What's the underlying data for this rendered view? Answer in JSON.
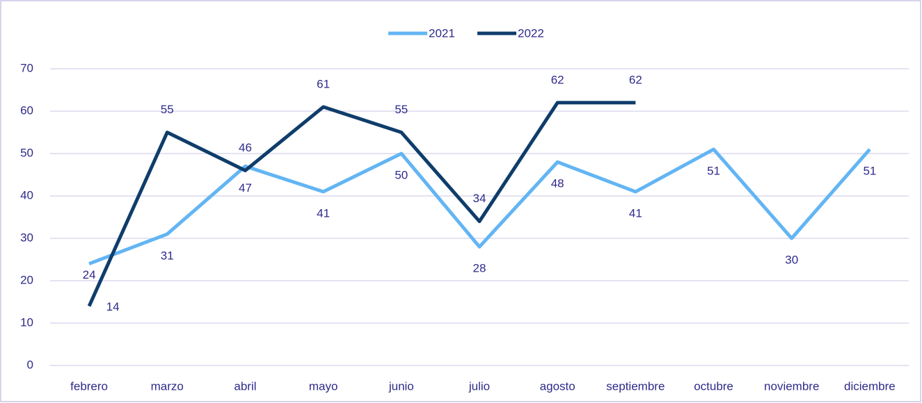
{
  "chart_data": {
    "type": "line",
    "categories": [
      "febrero",
      "marzo",
      "abril",
      "mayo",
      "junio",
      "julio",
      "agosto",
      "septiembre",
      "octubre",
      "noviembre",
      "diciembre"
    ],
    "series": [
      {
        "name": "2021",
        "color": "#63b5f3",
        "values": [
          24,
          31,
          47,
          41,
          50,
          28,
          48,
          41,
          51,
          30,
          51
        ]
      },
      {
        "name": "2022",
        "color": "#0f3d6b",
        "values": [
          14,
          55,
          46,
          61,
          55,
          34,
          62,
          62,
          null,
          null,
          null
        ]
      }
    ],
    "ylim": [
      0,
      70
    ],
    "yticks": [
      0,
      10,
      20,
      30,
      40,
      50,
      60,
      70
    ],
    "grid": true,
    "legend": "top"
  }
}
